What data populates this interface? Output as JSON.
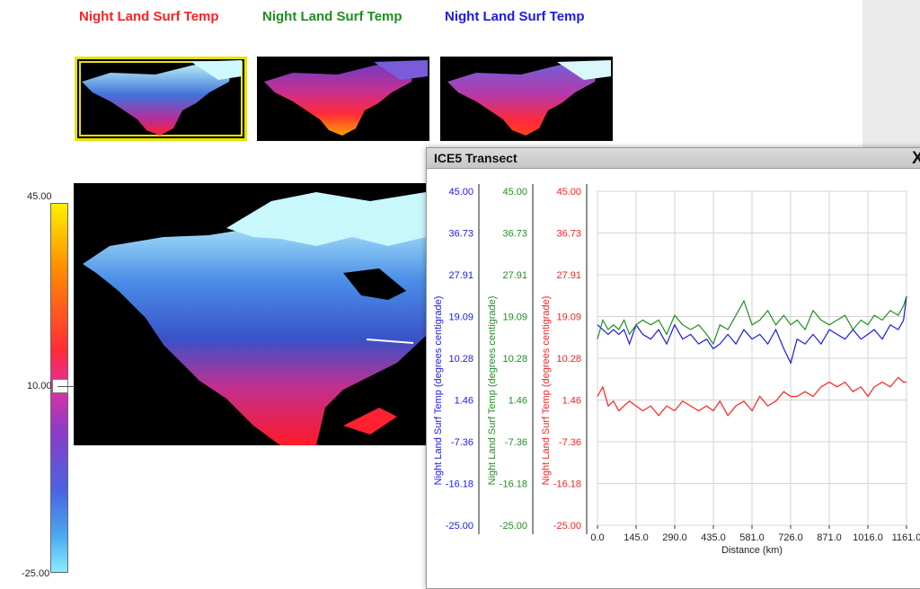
{
  "layer_titles": [
    {
      "label": "Night Land Surf Temp",
      "color": "#ff2020"
    },
    {
      "label": "Night Land Surf Temp",
      "color": "#1f8f1f"
    },
    {
      "label": "Night Land Surf Temp",
      "color": "#1a1af0"
    }
  ],
  "colorbar": {
    "max": "45.00",
    "mid": "10.00",
    "min": "-25.00"
  },
  "popup": {
    "title": "ICE5 Transect",
    "close_label": "X"
  },
  "chart_data": {
    "type": "line",
    "title": "ICE5 Transect",
    "xlabel": "Distance (km)",
    "x_ticks": [
      "0.0",
      "145.0",
      "290.0",
      "435.0",
      "581.0",
      "726.0",
      "871.0",
      "1016.0",
      "1161.0"
    ],
    "xlim": [
      0,
      1161
    ],
    "ylim": [
      -25,
      45
    ],
    "y_ticks": [
      "45.00",
      "36.73",
      "27.91",
      "19.09",
      "10.28",
      "1.46",
      "-7.36",
      "-16.18",
      "-25.00"
    ],
    "grid": true,
    "axes": [
      {
        "label": "Night Land Surf Temp  (degrees centigrade)",
        "color": "#1a1af0"
      },
      {
        "label": "Night Land Surf Temp  (degrees centigrade)",
        "color": "#1f8f1f"
      },
      {
        "label": "Night Land Surf Temp  (degrees centigrade)",
        "color": "#ff2020"
      }
    ],
    "series": [
      {
        "color": "#1a1af0",
        "x": [
          0,
          20,
          40,
          60,
          80,
          100,
          120,
          145,
          170,
          200,
          230,
          260,
          290,
          320,
          350,
          380,
          410,
          435,
          460,
          490,
          520,
          550,
          581,
          610,
          640,
          670,
          700,
          726,
          750,
          780,
          810,
          840,
          871,
          900,
          930,
          960,
          990,
          1016,
          1040,
          1070,
          1100,
          1130,
          1150,
          1161
        ],
        "y": [
          17,
          16,
          15,
          16,
          15,
          16,
          13,
          17,
          15,
          14,
          16,
          13,
          17,
          14,
          15,
          13,
          14,
          12,
          13,
          15,
          13,
          16,
          14,
          15,
          13,
          16,
          12,
          9,
          14,
          13,
          15,
          13,
          16,
          15,
          14,
          16,
          14,
          15,
          16,
          14,
          17,
          16,
          18,
          23
        ]
      },
      {
        "color": "#1f8f1f",
        "x": [
          0,
          20,
          40,
          60,
          80,
          100,
          120,
          145,
          170,
          200,
          230,
          260,
          290,
          320,
          350,
          380,
          410,
          435,
          460,
          490,
          520,
          550,
          581,
          610,
          640,
          670,
          700,
          726,
          750,
          780,
          810,
          840,
          871,
          900,
          930,
          960,
          990,
          1016,
          1040,
          1070,
          1100,
          1130,
          1150,
          1161
        ],
        "y": [
          14,
          18,
          16,
          17,
          16,
          18,
          15,
          17,
          18,
          17,
          18,
          15,
          19,
          17,
          16,
          17,
          15,
          13,
          17,
          16,
          19,
          22,
          17,
          18,
          20,
          17,
          19,
          17,
          18,
          16,
          20,
          18,
          17,
          18,
          19,
          16,
          18,
          17,
          19,
          18,
          20,
          19,
          21,
          23
        ]
      },
      {
        "color": "#ff2020",
        "x": [
          0,
          20,
          40,
          60,
          80,
          100,
          120,
          145,
          170,
          200,
          230,
          260,
          290,
          320,
          350,
          380,
          410,
          435,
          460,
          490,
          520,
          550,
          581,
          610,
          640,
          670,
          700,
          726,
          750,
          780,
          810,
          840,
          871,
          900,
          930,
          960,
          990,
          1016,
          1040,
          1070,
          1100,
          1130,
          1150,
          1161
        ],
        "y": [
          2,
          4,
          0,
          1,
          -1,
          0,
          1,
          0,
          -1,
          0,
          -2,
          0,
          -1,
          1,
          0,
          -1,
          0,
          -1,
          1,
          -2,
          0,
          1,
          -1,
          2,
          0,
          1,
          3,
          2,
          2,
          3,
          2,
          4,
          5,
          4,
          5,
          3,
          4,
          2,
          4,
          5,
          4,
          6,
          5,
          5
        ]
      }
    ]
  }
}
